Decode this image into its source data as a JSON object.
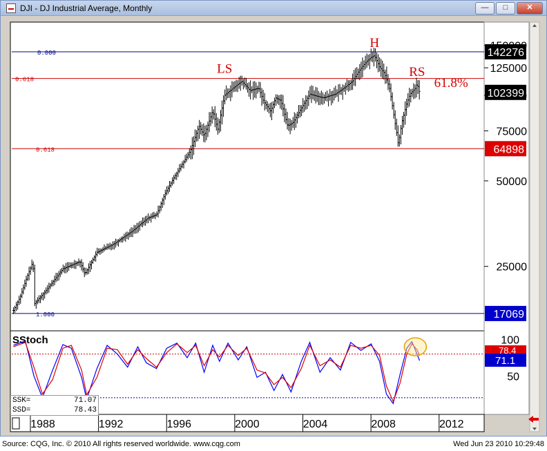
{
  "window": {
    "title": "DJI - DJ Industrial Average, Monthly",
    "minimize_glyph": "—",
    "maximize_glyph": "□",
    "close_glyph": "✕"
  },
  "footer": {
    "source": "Source: CQG, Inc. © 2010 All rights reserved worldwide. www.cqg.com",
    "timestamp": "Wed Jun 23 2010 10:29:48"
  },
  "stoch_panel": {
    "title": "SStoch",
    "ssk_label": "SSK=",
    "ssk_value": "71.07",
    "ssd_label": "SSD=",
    "ssd_value": "78.43",
    "badge_ssd": "78.4",
    "badge_ssk": "71.1"
  },
  "price_badges": {
    "top": "142276",
    "mid": "102399",
    "low": "64898",
    "bottom": "17069"
  },
  "colors": {
    "background": "#ffffff",
    "bars": "#000000",
    "blue_line": "#00008b",
    "red_line": "#cc0000",
    "badge_black": "#000000",
    "badge_red": "#dd0000",
    "badge_blue": "#0000cc",
    "annotation_red": "#d40000",
    "ssk_line": "#0000ff",
    "ssd_line": "#dd0000",
    "highlight_circle": "#e6a000"
  },
  "chart_data": [
    {
      "type": "ohlc",
      "frequency": "monthly",
      "title": "DJI - DJ Industrial Average, Monthly",
      "y_scale": "log",
      "ylim": [
        15000,
        180000
      ],
      "xlim": [
        1986.5,
        2014.2
      ],
      "yticks": [
        25000,
        50000,
        75000,
        100000,
        125000,
        150000
      ],
      "ytick_labels": [
        "25000",
        "50000",
        "75000",
        "100000",
        "125000",
        "150000"
      ],
      "xticks": [
        1988,
        1992,
        1996,
        2000,
        2004,
        2008,
        2012
      ],
      "xtick_labels": [
        "1988",
        "1992",
        "1996",
        "2000",
        "2004",
        "2008",
        "2012"
      ],
      "grid": false,
      "path_points": [
        [
          1986.6,
          17500
        ],
        [
          1987.0,
          19500
        ],
        [
          1987.4,
          23000
        ],
        [
          1987.75,
          26000
        ],
        [
          1987.85,
          18500
        ],
        [
          1988.5,
          20500
        ],
        [
          1989.5,
          24500
        ],
        [
          1990.5,
          26000
        ],
        [
          1990.8,
          23500
        ],
        [
          1991.5,
          28000
        ],
        [
          1992.5,
          30000
        ],
        [
          1993.5,
          33000
        ],
        [
          1994.5,
          37000
        ],
        [
          1995.0,
          38000
        ],
        [
          1995.5,
          45000
        ],
        [
          1996.0,
          51000
        ],
        [
          1996.5,
          57000
        ],
        [
          1997.0,
          64000
        ],
        [
          1997.5,
          78000
        ],
        [
          1997.8,
          72000
        ],
        [
          1998.3,
          88000
        ],
        [
          1998.6,
          76000
        ],
        [
          1999.0,
          100000
        ],
        [
          1999.5,
          106000
        ],
        [
          2000.0,
          112000
        ],
        [
          2000.5,
          104000
        ],
        [
          2001.0,
          106000
        ],
        [
          2001.3,
          95000
        ],
        [
          2001.7,
          88000
        ],
        [
          2002.0,
          98000
        ],
        [
          2002.3,
          96000
        ],
        [
          2002.7,
          78000
        ],
        [
          2003.0,
          80000
        ],
        [
          2003.5,
          90000
        ],
        [
          2004.0,
          101000
        ],
        [
          2004.5,
          99000
        ],
        [
          2004.8,
          98000
        ],
        [
          2005.5,
          101000
        ],
        [
          2006.0,
          106000
        ],
        [
          2006.5,
          112000
        ],
        [
          2006.9,
          122000
        ],
        [
          2007.3,
          131000
        ],
        [
          2007.6,
          136000
        ],
        [
          2007.8,
          138000
        ],
        [
          2008.1,
          126000
        ],
        [
          2008.4,
          119000
        ],
        [
          2008.7,
          105000
        ],
        [
          2008.9,
          88000
        ],
        [
          2009.1,
          74000
        ],
        [
          2009.2,
          67000
        ],
        [
          2009.4,
          80000
        ],
        [
          2009.7,
          94000
        ],
        [
          2009.9,
          101000
        ],
        [
          2010.2,
          106000
        ],
        [
          2010.3,
          110000
        ],
        [
          2010.45,
          102399
        ]
      ],
      "reference_lines": [
        {
          "label": "0.000",
          "value": 142276,
          "color": "#00008b"
        },
        {
          "label": "0.618",
          "value": 114600,
          "color": "#cc0000"
        },
        {
          "label": "0.618",
          "value": 64898,
          "color": "#cc0000"
        },
        {
          "label": "1.000",
          "value": 17069,
          "color": "#00008b"
        }
      ],
      "annotations": [
        {
          "text": "LS",
          "x": 1999.0,
          "y": 120000
        },
        {
          "text": "H",
          "x": 2007.8,
          "y": 148000
        },
        {
          "text": "RS",
          "x": 2010.3,
          "y": 117000
        },
        {
          "text": "61.8%",
          "x": 2012.3,
          "y": 107000
        }
      ],
      "last_value": 102399
    },
    {
      "type": "line",
      "title": "SStoch",
      "ylim": [
        0,
        110
      ],
      "yticks": [
        50,
        100
      ],
      "ytick_labels": [
        "50",
        "100"
      ],
      "reference_lines": [
        80,
        20
      ],
      "series": [
        {
          "name": "SSK",
          "x": [
            1986.6,
            1987.3,
            1987.8,
            1988.3,
            1988.9,
            1989.5,
            1990.0,
            1990.6,
            1990.9,
            1991.5,
            1992.1,
            1992.7,
            1993.3,
            1993.9,
            1994.4,
            1995.0,
            1995.6,
            1996.2,
            1996.8,
            1997.3,
            1997.8,
            1998.3,
            1998.7,
            1999.2,
            1999.8,
            2000.3,
            2000.9,
            2001.4,
            2001.9,
            2002.4,
            2002.9,
            2003.5,
            2004.0,
            2004.6,
            2005.2,
            2005.8,
            2006.4,
            2007.0,
            2007.6,
            2008.1,
            2008.5,
            2008.9,
            2009.3,
            2009.7,
            2010.0,
            2010.3,
            2010.45
          ],
          "values": [
            92,
            98,
            50,
            20,
            58,
            93,
            88,
            48,
            18,
            60,
            92,
            80,
            62,
            90,
            68,
            60,
            88,
            95,
            75,
            95,
            55,
            92,
            70,
            95,
            72,
            90,
            48,
            55,
            30,
            52,
            28,
            70,
            96,
            55,
            75,
            58,
            96,
            85,
            94,
            70,
            25,
            12,
            52,
            88,
            97,
            80,
            71.07
          ]
        },
        {
          "name": "SSD",
          "x": [
            1986.6,
            1987.3,
            1987.8,
            1988.3,
            1988.9,
            1989.5,
            1990.0,
            1990.6,
            1990.9,
            1991.5,
            1992.1,
            1992.7,
            1993.3,
            1993.9,
            1994.4,
            1995.0,
            1995.6,
            1996.2,
            1996.8,
            1997.3,
            1997.8,
            1998.3,
            1998.7,
            1999.2,
            1999.8,
            2000.3,
            2000.9,
            2001.4,
            2001.9,
            2002.4,
            2002.9,
            2003.5,
            2004.0,
            2004.6,
            2005.2,
            2005.8,
            2006.4,
            2007.0,
            2007.6,
            2008.1,
            2008.5,
            2008.9,
            2009.3,
            2009.7,
            2010.0,
            2010.3,
            2010.45
          ],
          "values": [
            90,
            96,
            62,
            25,
            45,
            88,
            92,
            58,
            24,
            48,
            88,
            86,
            66,
            86,
            74,
            62,
            82,
            94,
            82,
            92,
            64,
            86,
            76,
            92,
            78,
            88,
            58,
            54,
            38,
            48,
            34,
            60,
            92,
            64,
            72,
            62,
            92,
            88,
            92,
            78,
            36,
            15,
            40,
            80,
            94,
            86,
            78.43
          ]
        }
      ],
      "highlight": {
        "x": 2010.2,
        "y": 90,
        "color": "#e6a000"
      }
    }
  ]
}
